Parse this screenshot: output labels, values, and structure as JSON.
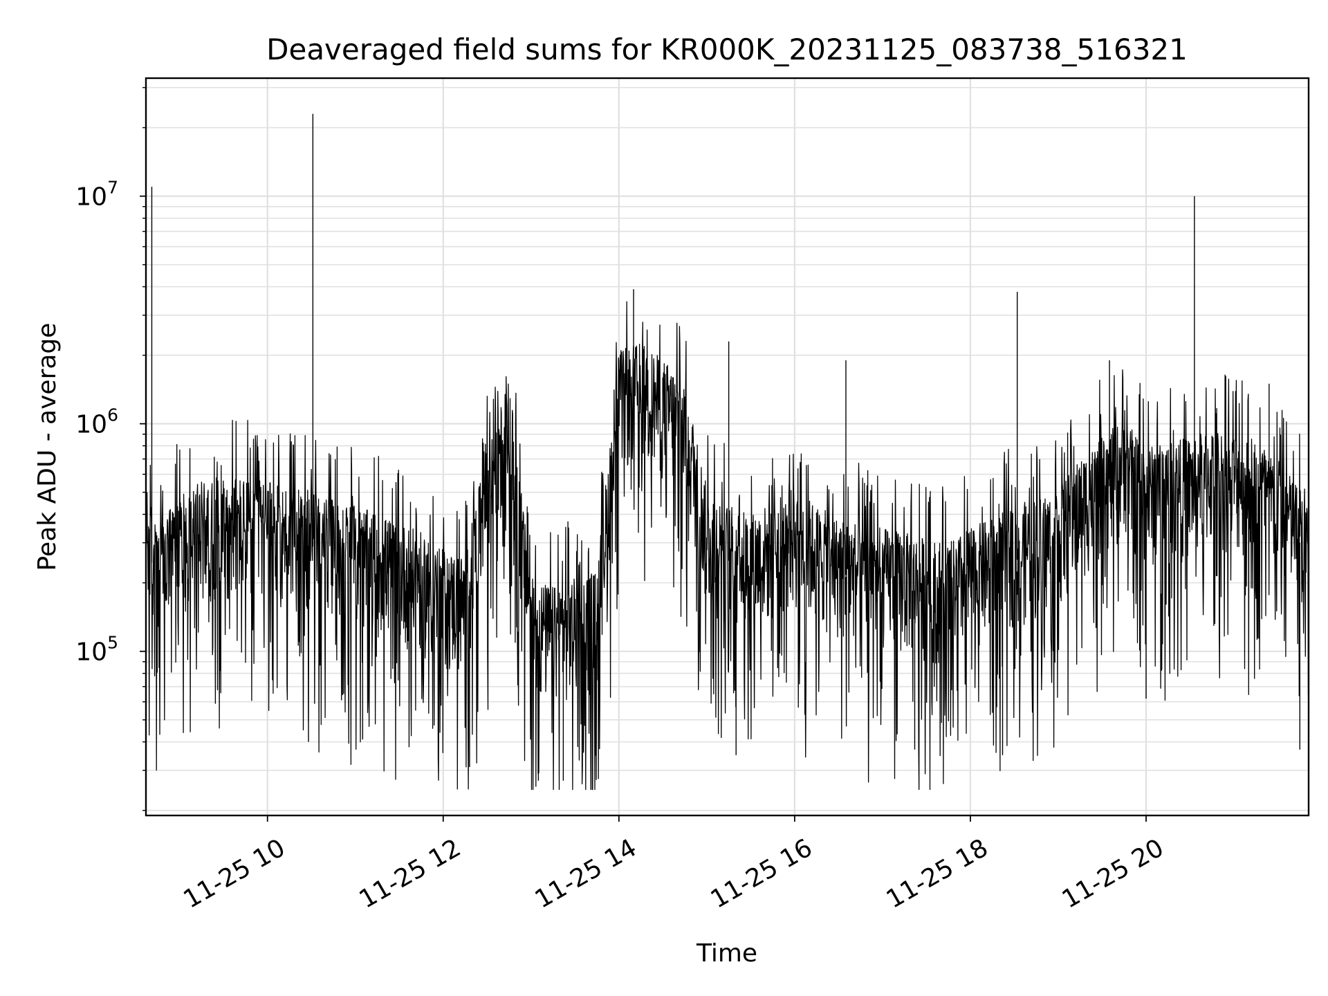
{
  "chart_data": {
    "type": "line",
    "title": "Deaveraged field sums for KR000K_20231125_083738_516321",
    "xlabel": "Time",
    "ylabel": "Peak ADU - average",
    "y_scale": "log",
    "ylim": [
      19000,
      33000000
    ],
    "xlim": [
      "2023-11-25 08:37",
      "2023-11-25 21:51"
    ],
    "grid": true,
    "legend": "none",
    "colors": {
      "line": "#000000",
      "grid": "#e0e0e0",
      "axes": "#000000"
    },
    "x_ticks": [
      {
        "value": "2023-11-25 10:00",
        "label": "11-25 10"
      },
      {
        "value": "2023-11-25 12:00",
        "label": "11-25 12"
      },
      {
        "value": "2023-11-25 14:00",
        "label": "11-25 14"
      },
      {
        "value": "2023-11-25 16:00",
        "label": "11-25 16"
      },
      {
        "value": "2023-11-25 18:00",
        "label": "11-25 18"
      },
      {
        "value": "2023-11-25 20:00",
        "label": "11-25 20"
      }
    ],
    "y_ticks": [
      {
        "value": 100000,
        "base": "10",
        "exp": "5"
      },
      {
        "value": 1000000,
        "base": "10",
        "exp": "6"
      },
      {
        "value": 10000000,
        "base": "10",
        "exp": "7"
      }
    ],
    "series": [
      {
        "x": [
          "2023-11-25 08:37",
          "2023-11-25 08:45",
          "2023-11-25 09:00",
          "2023-11-25 09:15",
          "2023-11-25 09:30",
          "2023-11-25 09:45",
          "2023-11-25 10:00",
          "2023-11-25 10:15",
          "2023-11-25 10:30",
          "2023-11-25 10:45",
          "2023-11-25 11:00",
          "2023-11-25 11:15",
          "2023-11-25 11:30",
          "2023-11-25 11:45",
          "2023-11-25 12:00",
          "2023-11-25 12:15",
          "2023-11-25 12:30",
          "2023-11-25 12:45",
          "2023-11-25 13:00",
          "2023-11-25 13:15",
          "2023-11-25 13:30",
          "2023-11-25 13:45",
          "2023-11-25 14:00",
          "2023-11-25 14:15",
          "2023-11-25 14:30",
          "2023-11-25 14:45",
          "2023-11-25 15:00",
          "2023-11-25 15:15",
          "2023-11-25 15:30",
          "2023-11-25 15:45",
          "2023-11-25 16:00",
          "2023-11-25 16:15",
          "2023-11-25 16:30",
          "2023-11-25 16:45",
          "2023-11-25 17:00",
          "2023-11-25 17:15",
          "2023-11-25 17:30",
          "2023-11-25 17:45",
          "2023-11-25 18:00",
          "2023-11-25 18:15",
          "2023-11-25 18:30",
          "2023-11-25 18:45",
          "2023-11-25 19:00",
          "2023-11-25 19:15",
          "2023-11-25 19:30",
          "2023-11-25 19:45",
          "2023-11-25 20:00",
          "2023-11-25 20:15",
          "2023-11-25 20:30",
          "2023-11-25 20:45",
          "2023-11-25 21:00",
          "2023-11-25 21:15",
          "2023-11-25 21:30",
          "2023-11-25 21:45"
        ],
        "y": [
          300000,
          200000,
          280000,
          320000,
          340000,
          330000,
          320000,
          300000,
          290000,
          270000,
          250000,
          230000,
          210000,
          190000,
          160000,
          150000,
          450000,
          900000,
          120000,
          110000,
          120000,
          130000,
          1200000,
          1300000,
          1100000,
          900000,
          300000,
          250000,
          230000,
          260000,
          300000,
          250000,
          220000,
          210000,
          200000,
          190000,
          180000,
          170000,
          200000,
          220000,
          250000,
          270000,
          300000,
          400000,
          500000,
          600000,
          450000,
          480000,
          500000,
          550000,
          520000,
          500000,
          400000,
          300000
        ]
      }
    ],
    "spikes": [
      {
        "x": "2023-11-25 08:41",
        "y": 11000000
      },
      {
        "x": "2023-11-25 10:31",
        "y": 23000000
      },
      {
        "x": "2023-11-25 14:10",
        "y": 3900000
      },
      {
        "x": "2023-11-25 15:15",
        "y": 2300000
      },
      {
        "x": "2023-11-25 16:35",
        "y": 1900000
      },
      {
        "x": "2023-11-25 18:32",
        "y": 3800000
      },
      {
        "x": "2023-11-25 19:35",
        "y": 1900000
      },
      {
        "x": "2023-11-25 20:33",
        "y": 10000000
      },
      {
        "x": "2023-11-25 21:24",
        "y": 1500000
      }
    ],
    "dips": [
      {
        "x": "2023-11-25 10:28",
        "y": 40000
      },
      {
        "x": "2023-11-25 11:05",
        "y": 41000
      },
      {
        "x": "2023-11-25 12:18",
        "y": 31000
      },
      {
        "x": "2023-11-25 13:05",
        "y": 27000
      },
      {
        "x": "2023-11-25 13:22",
        "y": 27000
      },
      {
        "x": "2023-11-25 15:20",
        "y": 35000
      },
      {
        "x": "2023-11-25 17:22",
        "y": 37000
      },
      {
        "x": "2023-11-25 18:22",
        "y": 35000
      },
      {
        "x": "2023-11-25 20:00",
        "y": 62000
      },
      {
        "x": "2023-11-25 21:45",
        "y": 37000
      }
    ]
  }
}
